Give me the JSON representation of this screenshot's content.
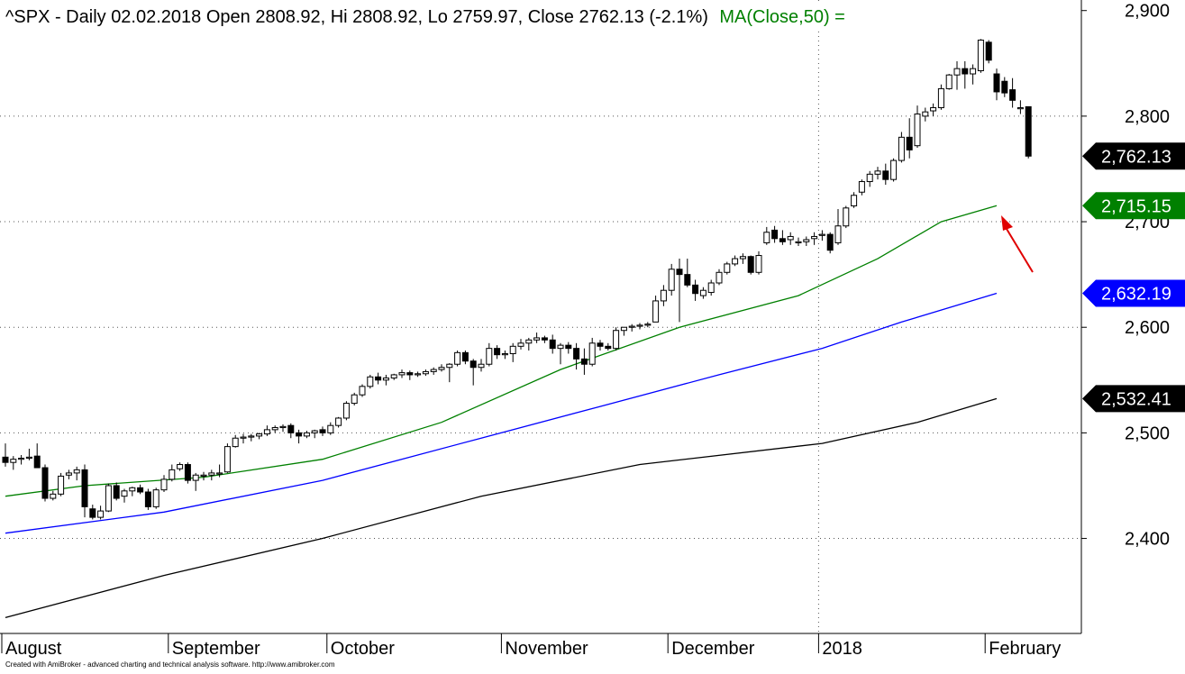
{
  "chart_data": {
    "type": "candlestick",
    "title": "^SPX - Daily 02.02.2018 Open 2808.92, Hi 2808.92, Lo 2759.97, Close 2762.13 (-2.1%)",
    "ma_label": "MA(Close,50) =",
    "ylim": [
      2310,
      2910
    ],
    "y_ticks": [
      2400,
      2500,
      2600,
      2700,
      2800,
      2900
    ],
    "y_tick_labels": [
      "2,400",
      "2,500",
      "2,600",
      "2,700",
      "2,800",
      "2,900"
    ],
    "months": [
      {
        "label": "August",
        "index": 0
      },
      {
        "label": "September",
        "index": 21
      },
      {
        "label": "October",
        "index": 41
      },
      {
        "label": "November",
        "index": 63
      },
      {
        "label": "December",
        "index": 84
      },
      {
        "label": "2018",
        "index": 103
      },
      {
        "label": "February",
        "index": 124
      }
    ],
    "year_divider_index": 103,
    "grid": "dotted horizontal at y ticks",
    "price_tags": [
      {
        "label": "2,762.13",
        "value": 2762.13,
        "color": "#000000"
      },
      {
        "label": "2,715.15",
        "value": 2715.15,
        "color": "#008000"
      },
      {
        "label": "2,632.19",
        "value": 2632.19,
        "color": "#0000ff"
      },
      {
        "label": "2,532.41",
        "value": 2532.41,
        "color": "#000000"
      }
    ],
    "series": [
      {
        "name": "MA(Close,50)",
        "color": "#008000",
        "points": [
          [
            0,
            2440
          ],
          [
            10,
            2450
          ],
          [
            25,
            2458
          ],
          [
            40,
            2475
          ],
          [
            55,
            2510
          ],
          [
            70,
            2560
          ],
          [
            85,
            2600
          ],
          [
            100,
            2630
          ],
          [
            110,
            2665
          ],
          [
            118,
            2700
          ],
          [
            125,
            2715.15
          ]
        ]
      },
      {
        "name": "",
        "color": "#0000ff",
        "points": [
          [
            0,
            2405
          ],
          [
            20,
            2425
          ],
          [
            40,
            2455
          ],
          [
            60,
            2495
          ],
          [
            75,
            2525
          ],
          [
            90,
            2555
          ],
          [
            103,
            2580
          ],
          [
            113,
            2605
          ],
          [
            125,
            2632.19
          ]
        ]
      },
      {
        "name": "",
        "color": "#000000",
        "points": [
          [
            0,
            2325
          ],
          [
            20,
            2365
          ],
          [
            40,
            2400
          ],
          [
            60,
            2440
          ],
          [
            80,
            2470
          ],
          [
            103,
            2490
          ],
          [
            115,
            2510
          ],
          [
            125,
            2532.41
          ]
        ]
      }
    ],
    "candles": [
      [
        2477,
        2490,
        2468,
        2472
      ],
      [
        2472,
        2478,
        2465,
        2475
      ],
      [
        2475,
        2479,
        2470,
        2476
      ],
      [
        2476,
        2485,
        2474,
        2477
      ],
      [
        2478,
        2490,
        2470,
        2467
      ],
      [
        2467,
        2470,
        2435,
        2438
      ],
      [
        2438,
        2445,
        2436,
        2442
      ],
      [
        2442,
        2462,
        2440,
        2459
      ],
      [
        2460,
        2465,
        2456,
        2462
      ],
      [
        2462,
        2468,
        2455,
        2465
      ],
      [
        2465,
        2470,
        2420,
        2430
      ],
      [
        2428,
        2432,
        2418,
        2420
      ],
      [
        2420,
        2431,
        2418,
        2426
      ],
      [
        2426,
        2452,
        2425,
        2450
      ],
      [
        2450,
        2453,
        2436,
        2438
      ],
      [
        2440,
        2447,
        2434,
        2445
      ],
      [
        2445,
        2449,
        2440,
        2448
      ],
      [
        2448,
        2451,
        2442,
        2444
      ],
      [
        2444,
        2447,
        2427,
        2430
      ],
      [
        2430,
        2448,
        2428,
        2446
      ],
      [
        2446,
        2460,
        2444,
        2456
      ],
      [
        2456,
        2470,
        2454,
        2465
      ],
      [
        2466,
        2472,
        2464,
        2470
      ],
      [
        2470,
        2472,
        2452,
        2455
      ],
      [
        2455,
        2462,
        2445,
        2460
      ],
      [
        2460,
        2463,
        2455,
        2460
      ],
      [
        2460,
        2465,
        2455,
        2462
      ],
      [
        2462,
        2470,
        2458,
        2462
      ],
      [
        2463,
        2490,
        2462,
        2487
      ],
      [
        2487,
        2498,
        2486,
        2495
      ],
      [
        2495,
        2499,
        2490,
        2496
      ],
      [
        2496,
        2499,
        2492,
        2497
      ],
      [
        2497,
        2500,
        2494,
        2499
      ],
      [
        2499,
        2507,
        2497,
        2503
      ],
      [
        2503,
        2507,
        2500,
        2505
      ],
      [
        2505,
        2508,
        2501,
        2506
      ],
      [
        2507,
        2509,
        2495,
        2500
      ],
      [
        2500,
        2503,
        2490,
        2497
      ],
      [
        2497,
        2502,
        2495,
        2500
      ],
      [
        2500,
        2503,
        2495,
        2502
      ],
      [
        2503,
        2506,
        2497,
        2500
      ],
      [
        2500,
        2510,
        2498,
        2507
      ],
      [
        2507,
        2515,
        2505,
        2514
      ],
      [
        2514,
        2530,
        2512,
        2528
      ],
      [
        2528,
        2538,
        2526,
        2536
      ],
      [
        2536,
        2546,
        2534,
        2544
      ],
      [
        2544,
        2555,
        2542,
        2553
      ],
      [
        2553,
        2557,
        2546,
        2550
      ],
      [
        2550,
        2555,
        2545,
        2552
      ],
      [
        2552,
        2556,
        2550,
        2555
      ],
      [
        2555,
        2560,
        2552,
        2557
      ],
      [
        2557,
        2559,
        2550,
        2555
      ],
      [
        2555,
        2558,
        2553,
        2556
      ],
      [
        2556,
        2560,
        2554,
        2558
      ],
      [
        2558,
        2562,
        2555,
        2560
      ],
      [
        2560,
        2565,
        2558,
        2562
      ],
      [
        2562,
        2566,
        2548,
        2565
      ],
      [
        2565,
        2578,
        2563,
        2576
      ],
      [
        2576,
        2578,
        2565,
        2568
      ],
      [
        2568,
        2570,
        2545,
        2562
      ],
      [
        2562,
        2570,
        2558,
        2565
      ],
      [
        2565,
        2585,
        2563,
        2580
      ],
      [
        2580,
        2583,
        2570,
        2574
      ],
      [
        2574,
        2578,
        2570,
        2575
      ],
      [
        2575,
        2585,
        2567,
        2582
      ],
      [
        2582,
        2589,
        2579,
        2585
      ],
      [
        2585,
        2590,
        2578,
        2588
      ],
      [
        2588,
        2595,
        2585,
        2590
      ],
      [
        2590,
        2592,
        2585,
        2588
      ],
      [
        2588,
        2593,
        2575,
        2580
      ],
      [
        2580,
        2585,
        2565,
        2583
      ],
      [
        2583,
        2586,
        2575,
        2580
      ],
      [
        2580,
        2585,
        2560,
        2570
      ],
      [
        2570,
        2580,
        2555,
        2565
      ],
      [
        2565,
        2590,
        2563,
        2585
      ],
      [
        2585,
        2588,
        2578,
        2582
      ],
      [
        2582,
        2585,
        2578,
        2580
      ],
      [
        2580,
        2600,
        2578,
        2597
      ],
      [
        2597,
        2600,
        2592,
        2600
      ],
      [
        2600,
        2603,
        2596,
        2601
      ],
      [
        2601,
        2604,
        2598,
        2602
      ],
      [
        2602,
        2605,
        2600,
        2603
      ],
      [
        2605,
        2630,
        2605,
        2625
      ],
      [
        2625,
        2640,
        2620,
        2635
      ],
      [
        2635,
        2660,
        2630,
        2655
      ],
      [
        2655,
        2665,
        2605,
        2650
      ],
      [
        2650,
        2665,
        2638,
        2640
      ],
      [
        2640,
        2645,
        2625,
        2632
      ],
      [
        2630,
        2638,
        2627,
        2635
      ],
      [
        2633,
        2645,
        2630,
        2642
      ],
      [
        2642,
        2655,
        2640,
        2652
      ],
      [
        2652,
        2662,
        2650,
        2660
      ],
      [
        2660,
        2668,
        2658,
        2665
      ],
      [
        2665,
        2670,
        2660,
        2667
      ],
      [
        2667,
        2668,
        2650,
        2652
      ],
      [
        2652,
        2672,
        2650,
        2668
      ],
      [
        2680,
        2695,
        2678,
        2690
      ],
      [
        2692,
        2696,
        2680,
        2684
      ],
      [
        2684,
        2692,
        2678,
        2681
      ],
      [
        2683,
        2690,
        2678,
        2686
      ],
      [
        2680,
        2685,
        2677,
        2681
      ],
      [
        2681,
        2686,
        2677,
        2683
      ],
      [
        2684,
        2690,
        2678,
        2686
      ],
      [
        2687,
        2692,
        2682,
        2688
      ],
      [
        2688,
        2690,
        2670,
        2673
      ],
      [
        2680,
        2712,
        2678,
        2696
      ],
      [
        2696,
        2715,
        2694,
        2713
      ],
      [
        2715,
        2728,
        2713,
        2725
      ],
      [
        2728,
        2740,
        2725,
        2738
      ],
      [
        2738,
        2748,
        2733,
        2745
      ],
      [
        2745,
        2752,
        2740,
        2748
      ],
      [
        2748,
        2755,
        2735,
        2740
      ],
      [
        2740,
        2760,
        2738,
        2758
      ],
      [
        2758,
        2785,
        2756,
        2780
      ],
      [
        2780,
        2798,
        2760,
        2768
      ],
      [
        2772,
        2810,
        2770,
        2802
      ],
      [
        2800,
        2808,
        2795,
        2804
      ],
      [
        2805,
        2812,
        2800,
        2808
      ],
      [
        2808,
        2830,
        2806,
        2826
      ],
      [
        2826,
        2840,
        2825,
        2839
      ],
      [
        2839,
        2852,
        2825,
        2845
      ],
      [
        2845,
        2852,
        2826,
        2840
      ],
      [
        2840,
        2849,
        2830,
        2845
      ],
      [
        2843,
        2873,
        2841,
        2872
      ],
      [
        2870,
        2872,
        2850,
        2853
      ],
      [
        2840,
        2845,
        2815,
        2823
      ],
      [
        2833,
        2837,
        2818,
        2822
      ],
      [
        2825,
        2836,
        2808,
        2815
      ],
      [
        2808,
        2815,
        2802,
        2808
      ],
      [
        2808.92,
        2808.92,
        2759.97,
        2762.13
      ]
    ]
  },
  "footer": {
    "credit": "Created with AmiBroker - advanced charting and technical analysis software. http://www.amibroker.com"
  }
}
